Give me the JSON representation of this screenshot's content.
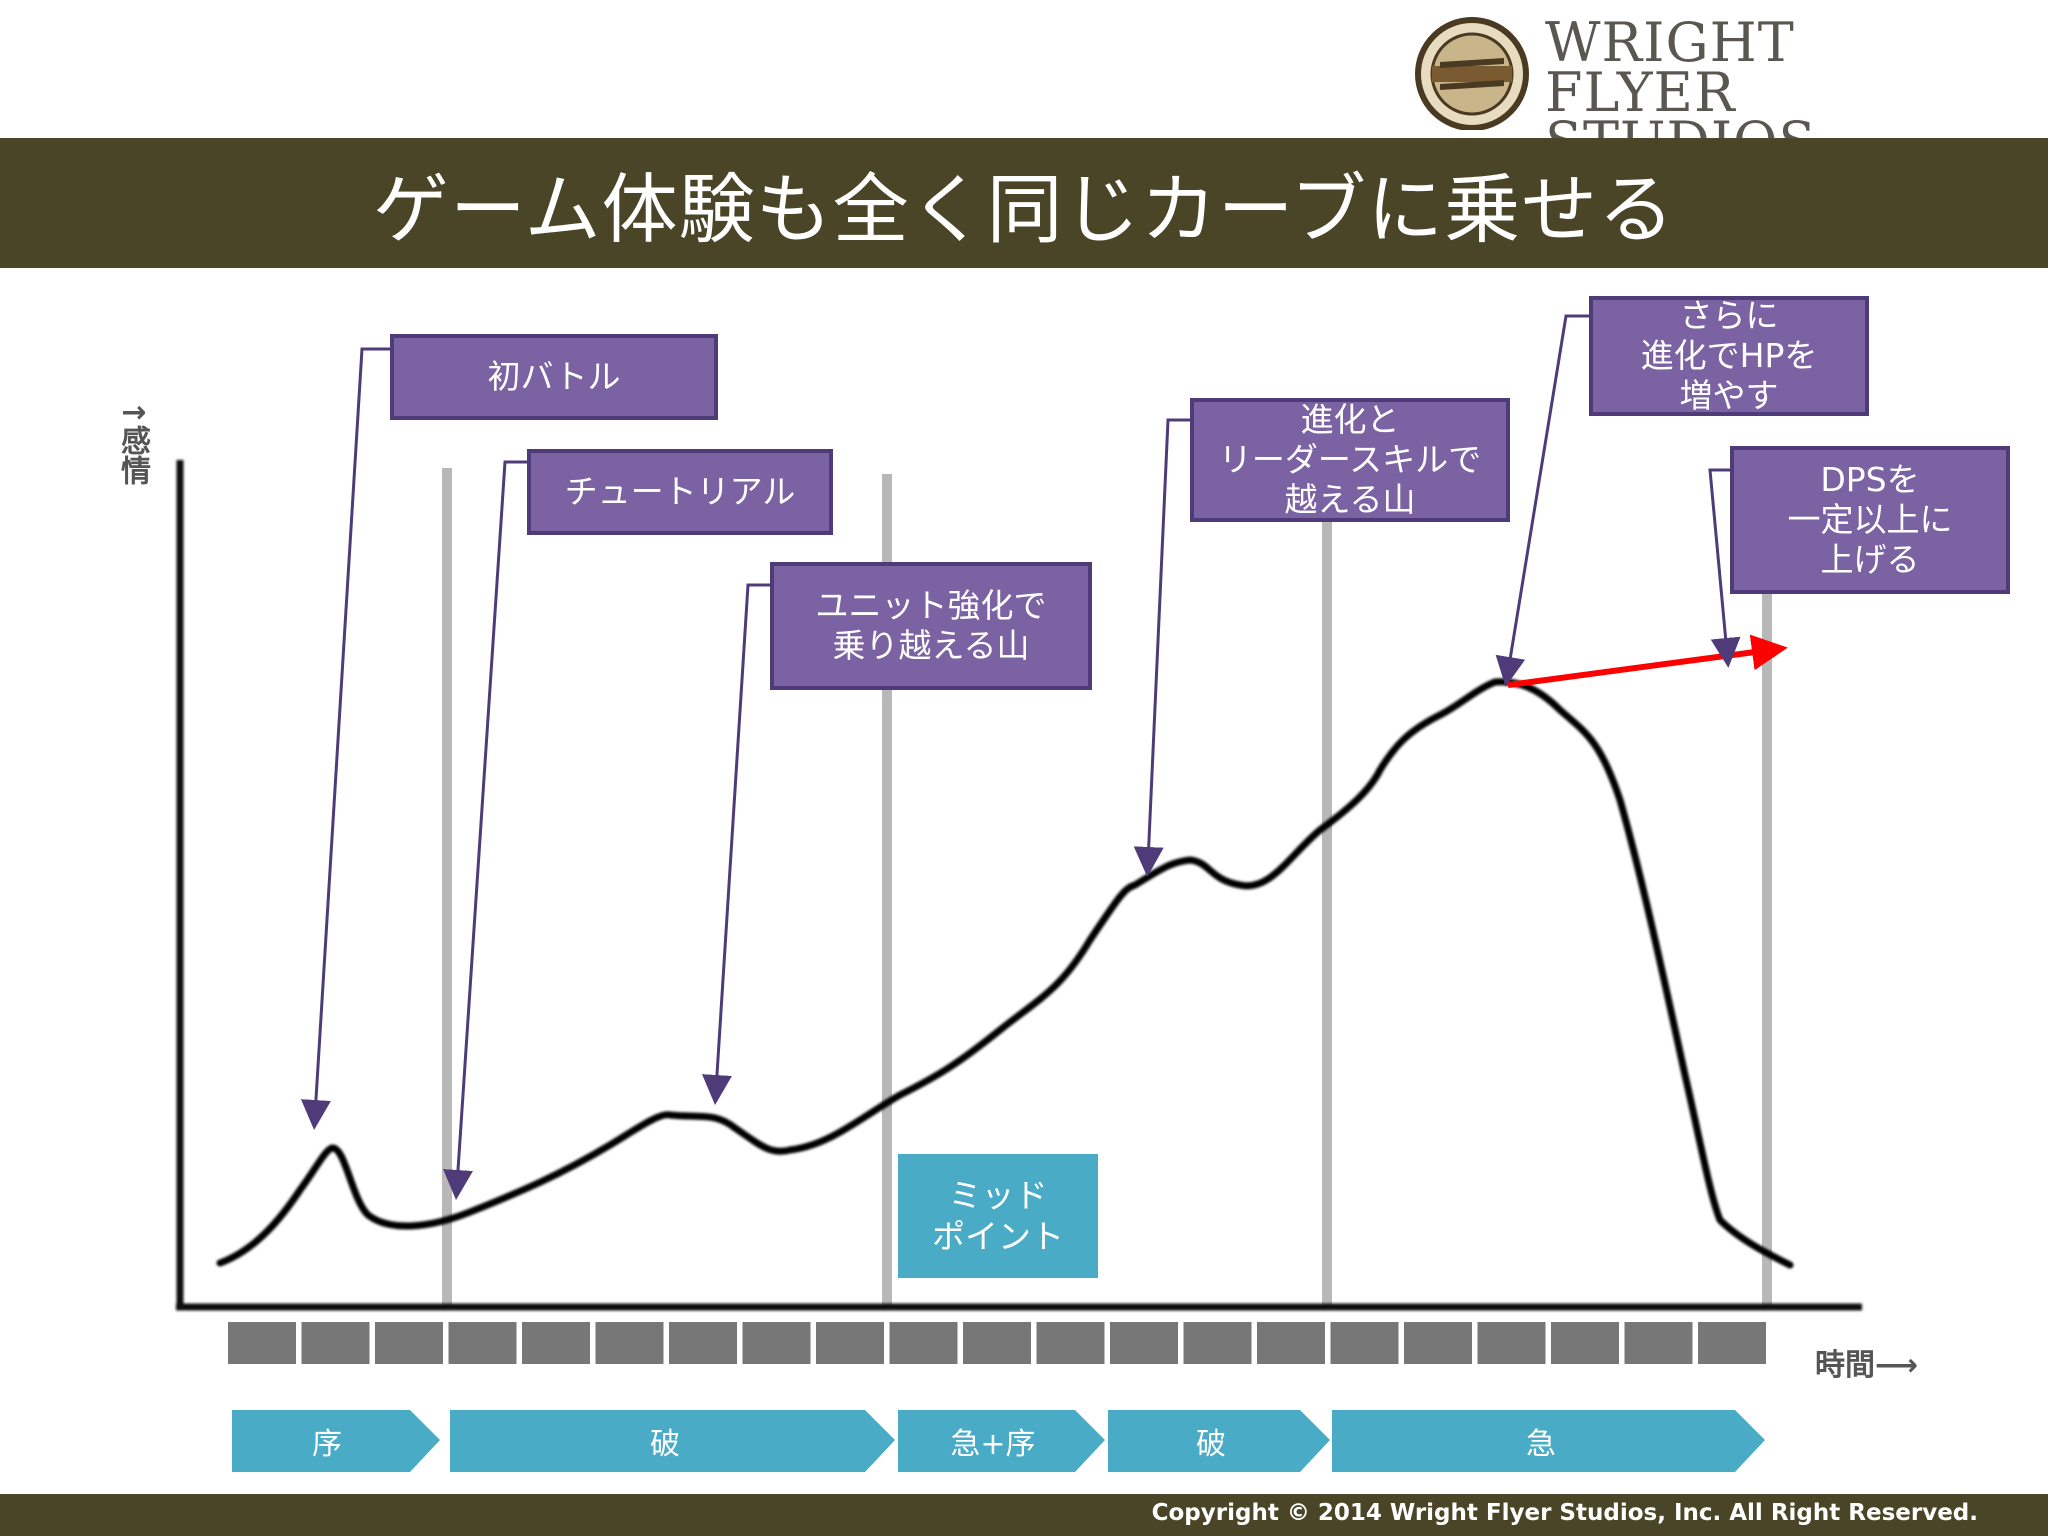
{
  "header": {
    "title": "ゲーム体験も全く同じカーブに乗せる",
    "logo_line1": "WRIGHT",
    "logo_line2": "FLYER STUDIOS",
    "logo_badge_text": "WRIGHT FLYER STUDIOS"
  },
  "axes": {
    "y_label": "↑感情",
    "x_label": "時間⟶"
  },
  "callouts": {
    "first_battle": "初バトル",
    "tutorial": "チュートリアル",
    "unit_upgrade": "ユニット強化で\n乗り越える山",
    "evolution_leader": "進化と\nリーダースキルで\n越える山",
    "evolution_hp": "さらに\n進化でHPを\n増やす",
    "dps": "DPSを\n一定以上に\n上げる"
  },
  "midpoint": "ミッド\nポイント",
  "phases": [
    "序",
    "破",
    "急+序",
    "破",
    "急"
  ],
  "colors": {
    "header_bg": "#4a4526",
    "callout_fill": "#7b62a3",
    "callout_border": "#4f3b78",
    "phase_fill": "#4aabc6",
    "curve": "#000000",
    "highlight_arrow": "#ff0000"
  },
  "footer": {
    "copyright": "Copyright © 2014 Wright Flyer Studios, Inc. All Right Reserved."
  }
}
